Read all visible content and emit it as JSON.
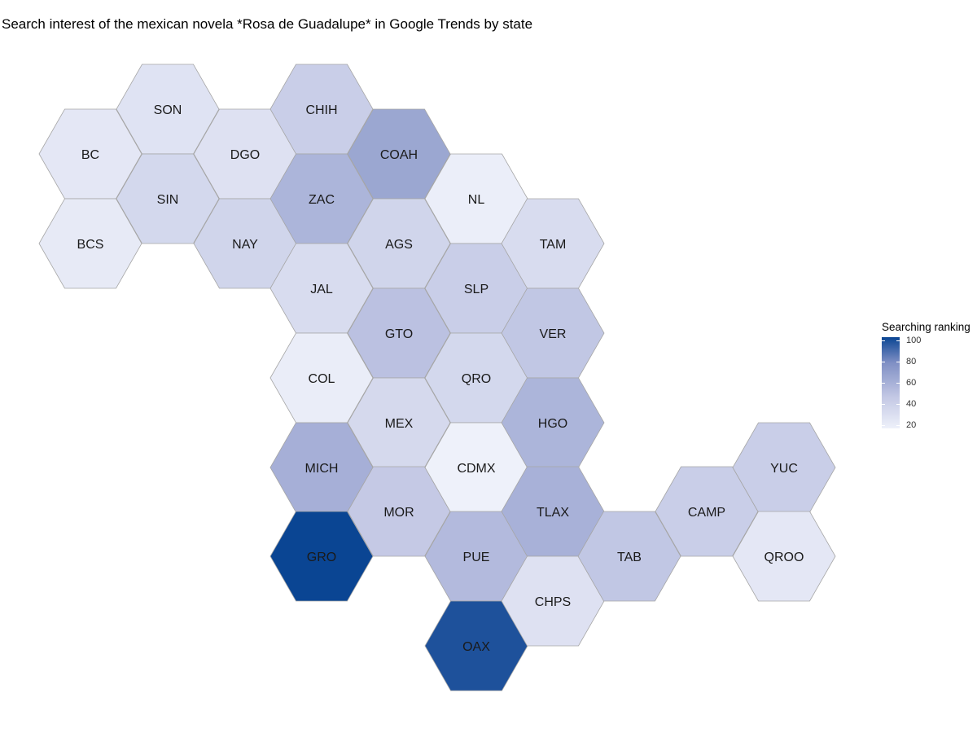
{
  "title": "Search interest of the mexican novela *Rosa de Guadalupe* in Google Trends by state",
  "legend": {
    "title": "Searching ranking",
    "ticks": [
      "100",
      "80",
      "60",
      "40",
      "20"
    ]
  },
  "colors": {
    "low": "#eef1fa",
    "high": "#0a4593",
    "stroke": "#a6a6a6"
  },
  "chart_data": {
    "type": "hexbin-map",
    "value_label": "Searching ranking",
    "scale_range": [
      15,
      100
    ],
    "states": [
      {
        "name": "BC",
        "value": 22
      },
      {
        "name": "BCS",
        "value": 20
      },
      {
        "name": "SON",
        "value": 25
      },
      {
        "name": "SIN",
        "value": 33
      },
      {
        "name": "DGO",
        "value": 26
      },
      {
        "name": "NAY",
        "value": 35
      },
      {
        "name": "CHIH",
        "value": 40
      },
      {
        "name": "ZAC",
        "value": 55
      },
      {
        "name": "JAL",
        "value": 30
      },
      {
        "name": "COL",
        "value": 18
      },
      {
        "name": "MICH",
        "value": 58
      },
      {
        "name": "GRO",
        "value": 100
      },
      {
        "name": "COAH",
        "value": 63
      },
      {
        "name": "AGS",
        "value": 35
      },
      {
        "name": "GTO",
        "value": 48
      },
      {
        "name": "MEX",
        "value": 32
      },
      {
        "name": "MOR",
        "value": 43
      },
      {
        "name": "NL",
        "value": 17
      },
      {
        "name": "SLP",
        "value": 40
      },
      {
        "name": "QRO",
        "value": 33
      },
      {
        "name": "CDMX",
        "value": 15
      },
      {
        "name": "PUE",
        "value": 52
      },
      {
        "name": "OAX",
        "value": 96
      },
      {
        "name": "TAM",
        "value": 30
      },
      {
        "name": "VER",
        "value": 45
      },
      {
        "name": "HGO",
        "value": 55
      },
      {
        "name": "TLAX",
        "value": 57
      },
      {
        "name": "CHPS",
        "value": 26
      },
      {
        "name": "TAB",
        "value": 45
      },
      {
        "name": "CAMP",
        "value": 40
      },
      {
        "name": "YUC",
        "value": 40
      },
      {
        "name": "QROO",
        "value": 22
      }
    ]
  }
}
